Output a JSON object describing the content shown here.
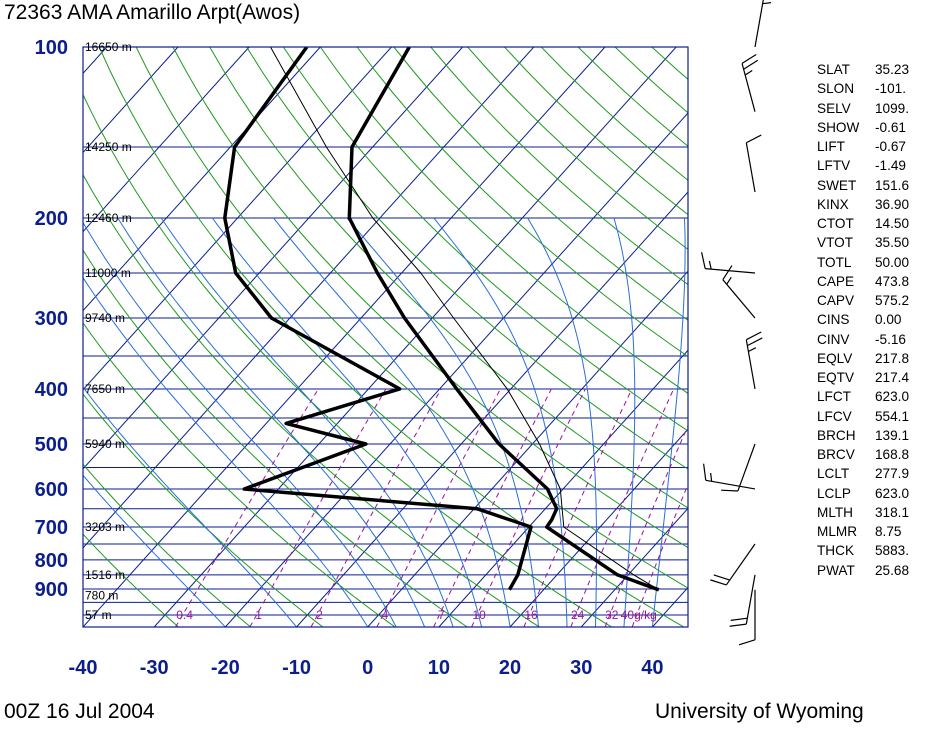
{
  "header": {
    "title": "72363 AMA Amarillo Arpt(Awos)"
  },
  "footer": {
    "left": "00Z 16 Jul 2004",
    "right": "University of Wyoming"
  },
  "colors": {
    "isobar": "#0b1e8c",
    "isotherm": "#0b1e8c",
    "dry_adiabat": "#1f9a1f",
    "moist_adiabat": "#2a6fd6",
    "mixing_ratio": "#9b139b",
    "sounding": "#000000",
    "axis_text": "#0b1e8c"
  },
  "chart_data": {
    "type": "skew-t log-p",
    "xlabel": "",
    "ylabel": "",
    "x_ticks": [
      -40,
      -30,
      -20,
      -10,
      0,
      10,
      20,
      30,
      40
    ],
    "y_ticks": [
      100,
      200,
      300,
      400,
      500,
      600,
      700,
      800,
      900
    ],
    "p_range": [
      1050,
      100
    ],
    "t_range_at_bottom": [
      -40,
      45
    ],
    "height_labels": [
      {
        "p": 100,
        "label": "16650 m"
      },
      {
        "p": 150,
        "label": "14250 m"
      },
      {
        "p": 200,
        "label": "12460 m"
      },
      {
        "p": 250,
        "label": "11000 m"
      },
      {
        "p": 300,
        "label": "9740 m"
      },
      {
        "p": 400,
        "label": "7650 m"
      },
      {
        "p": 500,
        "label": "5940 m"
      },
      {
        "p": 700,
        "label": "3203 m"
      },
      {
        "p": 850,
        "label": "1516 m"
      },
      {
        "p": 925,
        "label": "780 m"
      },
      {
        "p": 1000,
        "label": "57 m"
      }
    ],
    "mixing_ratio_labels": [
      "0.4",
      "1",
      "2",
      "4",
      "7",
      "10",
      "16",
      "24",
      "32",
      "40g/kg"
    ],
    "mixing_ratio_values": [
      0.4,
      1,
      2,
      4,
      7,
      10,
      16,
      24,
      32,
      40
    ],
    "temperature_profile": [
      {
        "p": 903,
        "t": 36.2
      },
      {
        "p": 850,
        "t": 28.5
      },
      {
        "p": 700,
        "t": 12.5
      },
      {
        "p": 680,
        "t": 12.3
      },
      {
        "p": 650,
        "t": 11.6
      },
      {
        "p": 600,
        "t": 7.8
      },
      {
        "p": 500,
        "t": -4.7
      },
      {
        "p": 400,
        "t": -17.6
      },
      {
        "p": 300,
        "t": -33.9
      },
      {
        "p": 250,
        "t": -43.4
      },
      {
        "p": 200,
        "t": -54.3
      },
      {
        "p": 150,
        "t": -62.9
      },
      {
        "p": 100,
        "t": -67.5
      }
    ],
    "dewpoint_profile": [
      {
        "p": 903,
        "t": 15.2
      },
      {
        "p": 850,
        "t": 14.5
      },
      {
        "p": 700,
        "t": 10.3
      },
      {
        "p": 650,
        "t": 0.4
      },
      {
        "p": 600,
        "t": -34.8
      },
      {
        "p": 500,
        "t": -23.4
      },
      {
        "p": 460,
        "t": -37.2
      },
      {
        "p": 400,
        "t": -25.6
      },
      {
        "p": 300,
        "t": -52.6
      },
      {
        "p": 250,
        "t": -63.3
      },
      {
        "p": 200,
        "t": -71.8
      },
      {
        "p": 150,
        "t": -79.4
      },
      {
        "p": 100,
        "t": -81.9
      }
    ],
    "parcel_profile": [
      {
        "p": 903,
        "t": 36.2
      },
      {
        "p": 850,
        "t": 30.8
      },
      {
        "p": 700,
        "t": 14.9
      },
      {
        "p": 600,
        "t": 9.6
      },
      {
        "p": 500,
        "t": 1.0
      },
      {
        "p": 400,
        "t": -10.5
      },
      {
        "p": 300,
        "t": -27.0
      },
      {
        "p": 250,
        "t": -37.3
      },
      {
        "p": 200,
        "t": -51.0
      },
      {
        "p": 150,
        "t": -66.5
      },
      {
        "p": 100,
        "t": -87.0
      }
    ],
    "wind_barbs": [
      {
        "p": 903,
        "dir": 180,
        "kt": 10
      },
      {
        "p": 850,
        "dir": 190,
        "kt": 20
      },
      {
        "p": 750,
        "dir": 215,
        "kt": 20
      },
      {
        "p": 600,
        "dir": 280,
        "kt": 15
      },
      {
        "p": 500,
        "dir": 200,
        "kt": 10
      },
      {
        "p": 400,
        "dir": 350,
        "kt": 25
      },
      {
        "p": 300,
        "dir": 320,
        "kt": 15
      },
      {
        "p": 250,
        "dir": 275,
        "kt": 15
      },
      {
        "p": 180,
        "dir": 350,
        "kt": 10
      },
      {
        "p": 130,
        "dir": 345,
        "kt": 25
      },
      {
        "p": 100,
        "dir": 10,
        "kt": 15
      }
    ]
  },
  "stats": [
    {
      "key": "SLAT",
      "value": "35.23"
    },
    {
      "key": "SLON",
      "value": "-101."
    },
    {
      "key": "SELV",
      "value": "1099."
    },
    {
      "key": "SHOW",
      "value": "-0.61"
    },
    {
      "key": "LIFT",
      "value": "-0.67"
    },
    {
      "key": "LFTV",
      "value": "-1.49"
    },
    {
      "key": "SWET",
      "value": "151.6"
    },
    {
      "key": "KINX",
      "value": "36.90"
    },
    {
      "key": "CTOT",
      "value": "14.50"
    },
    {
      "key": "VTOT",
      "value": "35.50"
    },
    {
      "key": "TOTL",
      "value": "50.00"
    },
    {
      "key": "CAPE",
      "value": "473.8"
    },
    {
      "key": "CAPV",
      "value": "575.2"
    },
    {
      "key": "CINS",
      "value": "0.00"
    },
    {
      "key": "CINV",
      "value": "-5.16"
    },
    {
      "key": "EQLV",
      "value": "217.8"
    },
    {
      "key": "EQTV",
      "value": "217.4"
    },
    {
      "key": "LFCT",
      "value": "623.0"
    },
    {
      "key": "LFCV",
      "value": "554.1"
    },
    {
      "key": "BRCH",
      "value": "139.1"
    },
    {
      "key": "BRCV",
      "value": "168.8"
    },
    {
      "key": "LCLT",
      "value": "277.9"
    },
    {
      "key": "LCLP",
      "value": "623.0"
    },
    {
      "key": "MLTH",
      "value": "318.1"
    },
    {
      "key": "MLMR",
      "value": "8.75"
    },
    {
      "key": "THCK",
      "value": "5883."
    },
    {
      "key": "PWAT",
      "value": "25.68"
    }
  ]
}
